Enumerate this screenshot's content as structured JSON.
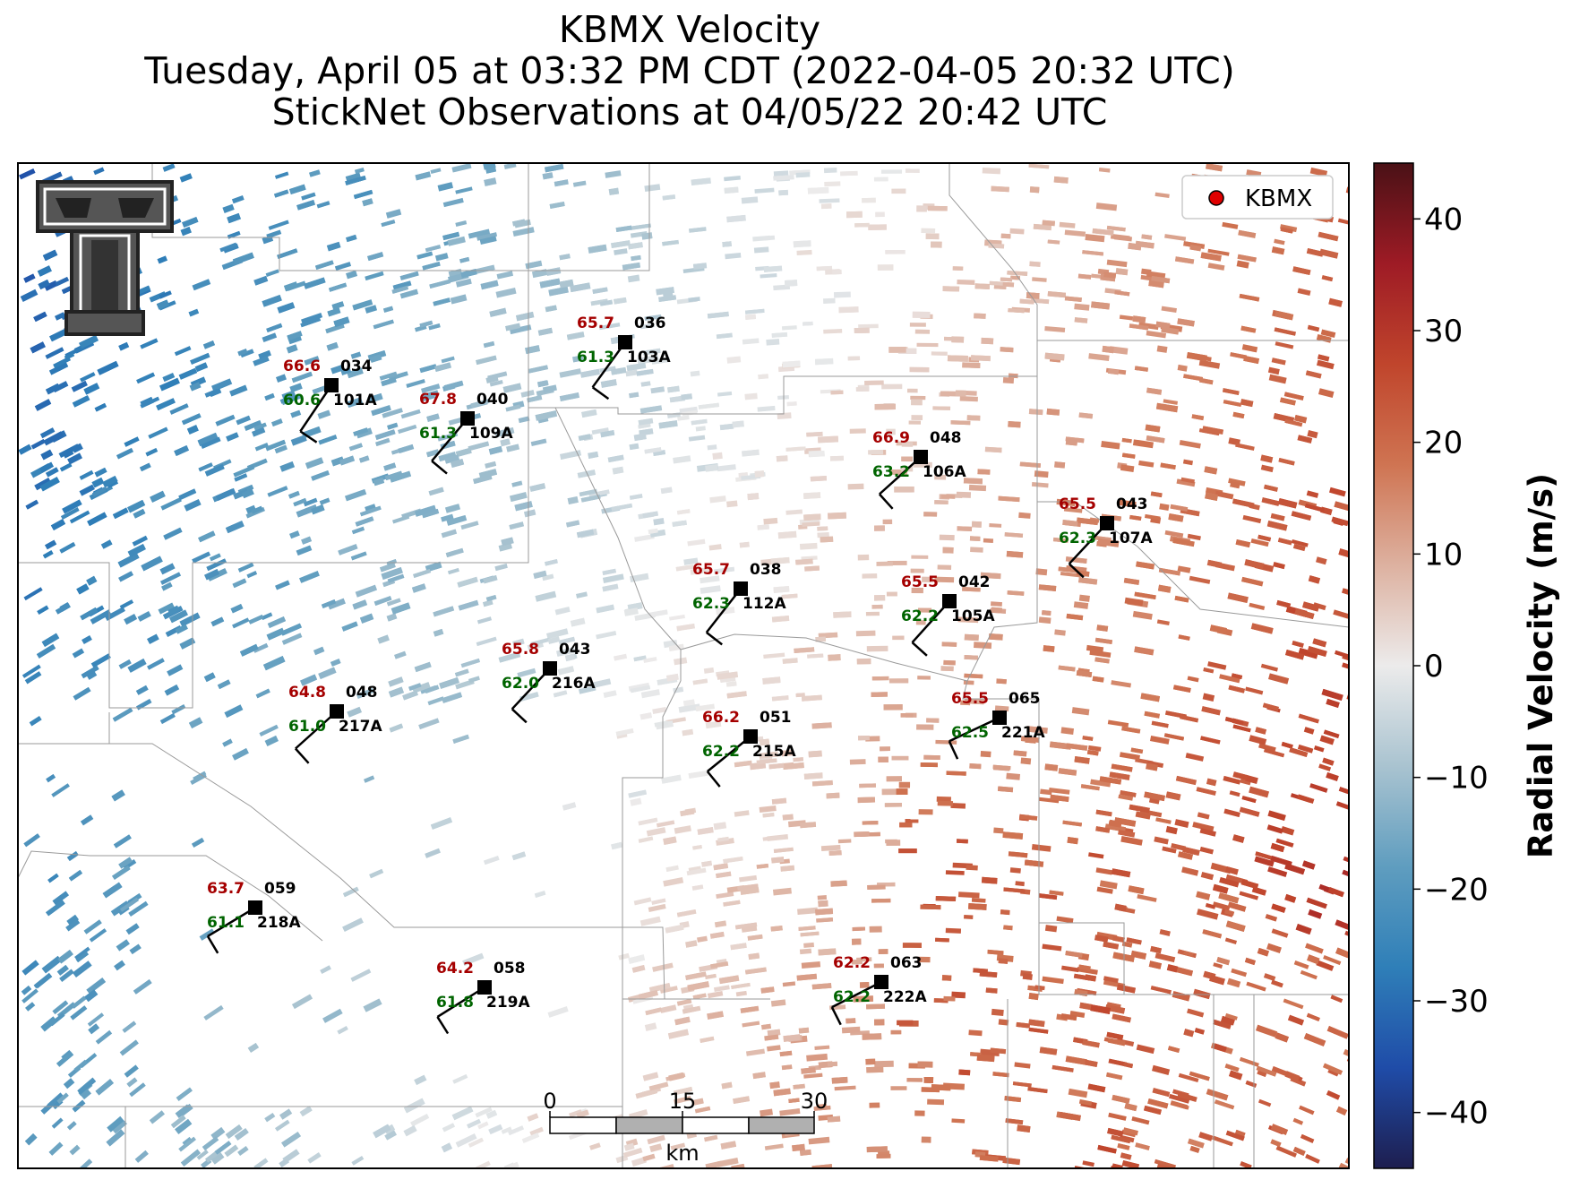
{
  "title": {
    "line1": "KBMX Velocity",
    "line2": "Tuesday, April 05 at 03:32 PM CDT (2022-04-05 20:32 UTC)",
    "line3": "StickNet Observations at 04/05/22 20:42 UTC"
  },
  "legend": {
    "label": "KBMX",
    "marker_color": "#e00000"
  },
  "colorbar": {
    "title": "Radial Velocity (m/s)",
    "min": -45,
    "max": 45,
    "ticks": [
      "40",
      "30",
      "20",
      "10",
      "0",
      "−10",
      "−20",
      "−30",
      "−40"
    ],
    "tick_values": [
      40,
      30,
      20,
      10,
      0,
      -10,
      -20,
      -30,
      -40
    ],
    "colors": [
      "#1e1e4f",
      "#1f4ca8",
      "#2f7fb8",
      "#5f9dbf",
      "#a9c3d0",
      "#ecebeb",
      "#ddb1a0",
      "#cf7452",
      "#c0452c",
      "#9e1b25",
      "#4a1116"
    ]
  },
  "scale_bar": {
    "labels": [
      "0",
      "15",
      "30"
    ],
    "unit": "km"
  },
  "logo": {
    "text": "Texas Tech Double T logo"
  },
  "stations": [
    {
      "id": "101A",
      "temp": "66.6",
      "dew": "60.6",
      "dir": "034"
    },
    {
      "id": "109A",
      "temp": "67.8",
      "dew": "61.3",
      "dir": "040"
    },
    {
      "id": "103A",
      "temp": "65.7",
      "dew": "61.3",
      "dir": "036"
    },
    {
      "id": "106A",
      "temp": "66.9",
      "dew": "63.2",
      "dir": "048"
    },
    {
      "id": "107A",
      "temp": "65.5",
      "dew": "62.3",
      "dir": "043"
    },
    {
      "id": "112A",
      "temp": "65.7",
      "dew": "62.3",
      "dir": "038"
    },
    {
      "id": "105A",
      "temp": "65.5",
      "dew": "62.2",
      "dir": "042"
    },
    {
      "id": "216A",
      "temp": "65.8",
      "dew": "62.0",
      "dir": "043"
    },
    {
      "id": "217A",
      "temp": "64.8",
      "dew": "61.0",
      "dir": "048"
    },
    {
      "id": "215A",
      "temp": "66.2",
      "dew": "62.2",
      "dir": "051"
    },
    {
      "id": "221A",
      "temp": "65.5",
      "dew": "62.5",
      "dir": "065"
    },
    {
      "id": "218A",
      "temp": "63.7",
      "dew": "61.1",
      "dir": "059"
    },
    {
      "id": "219A",
      "temp": "64.2",
      "dew": "61.8",
      "dir": "058"
    },
    {
      "id": "222A",
      "temp": "62.2",
      "dew": "62.2",
      "dir": "063"
    }
  ]
}
